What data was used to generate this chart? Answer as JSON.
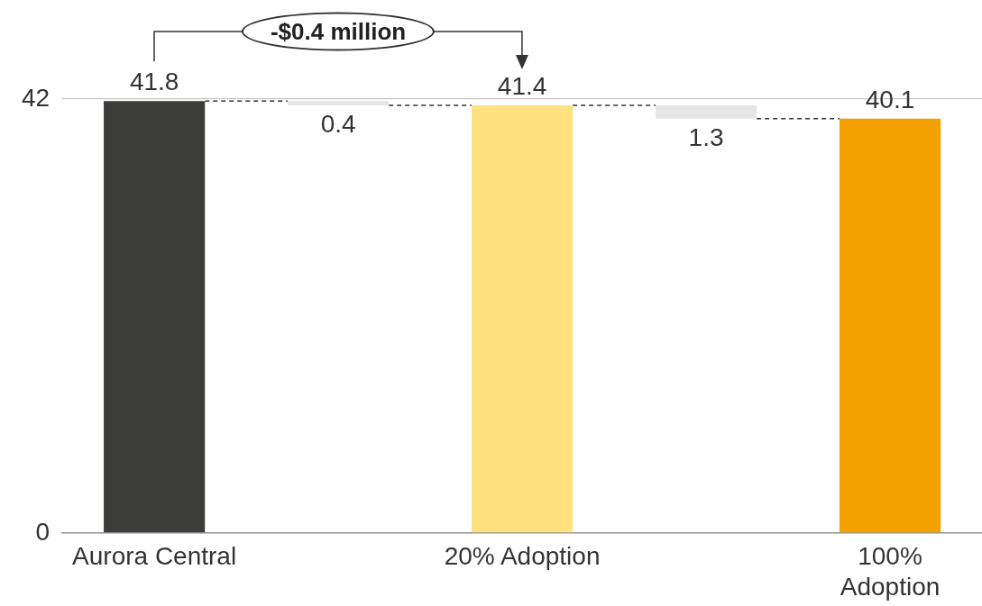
{
  "chart_data": {
    "type": "bar",
    "categories": [
      "Aurora Central",
      null,
      "20% Adoption",
      null,
      "100% Adoption"
    ],
    "values": [
      41.8,
      -0.4,
      41.4,
      -1.3,
      40.1
    ],
    "base": [
      0,
      41.8,
      0,
      41.4,
      0
    ],
    "colors": [
      "#3c3c3a",
      "#e6e6e6",
      "#ffe17f",
      "#e6e6e6",
      "#f5a000"
    ],
    "value_labels": [
      "41.8",
      "0.4",
      "41.4",
      "1.3",
      "40.1"
    ],
    "ylim": [
      0,
      42
    ],
    "yticks": [
      0,
      42
    ],
    "grid": "y",
    "legend": false,
    "annotations": [
      "-$0.4 million"
    ]
  }
}
